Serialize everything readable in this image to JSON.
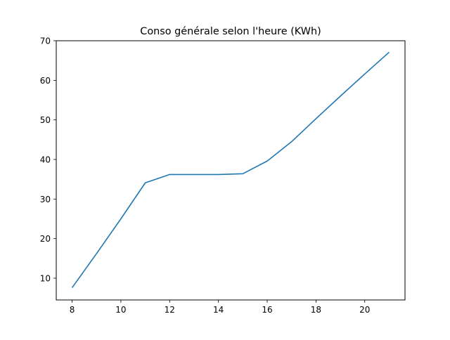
{
  "chart_data": {
    "type": "line",
    "title": "Conso générale selon l'heure (KWh)",
    "xlabel": "",
    "ylabel": "",
    "xlim": [
      7.35,
      21.65
    ],
    "ylim": [
      4.5,
      70
    ],
    "x_ticks": [
      8,
      10,
      12,
      14,
      16,
      18,
      20
    ],
    "y_ticks": [
      10,
      20,
      30,
      40,
      50,
      60,
      70
    ],
    "grid": false,
    "series": [
      {
        "color": "#1f77b4",
        "x": [
          8,
          9,
          10,
          11,
          12,
          13,
          14,
          15,
          16,
          17,
          18,
          19,
          20,
          21
        ],
        "y": [
          7.6,
          16.2,
          25.0,
          34.1,
          36.2,
          36.2,
          36.2,
          36.4,
          39.6,
          44.5,
          50.3,
          56.0,
          61.6,
          67.1
        ]
      }
    ]
  }
}
